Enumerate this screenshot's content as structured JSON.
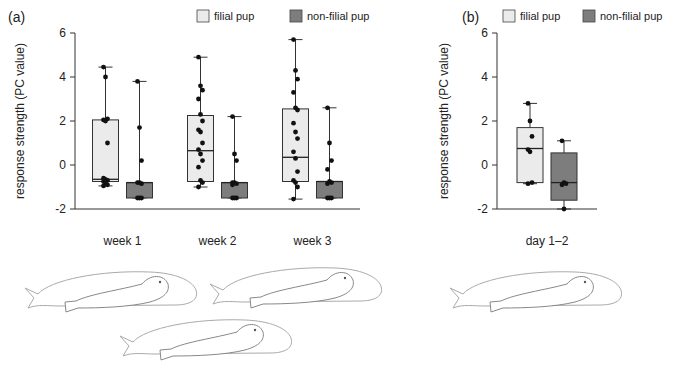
{
  "chart_data": [
    {
      "type": "box",
      "title": "(a)",
      "y_label": "response strength (PC value)",
      "categories": [
        "week 1",
        "week 2",
        "week 3"
      ],
      "ylim": [
        -2,
        6
      ],
      "yticks": [
        -2,
        0,
        2,
        4,
        6
      ],
      "grid": false,
      "legend": "top",
      "series": [
        {
          "name": "filial pup",
          "color": "#ebebeb",
          "values": [
            {
              "min": -0.95,
              "q1": -0.75,
              "median": -0.65,
              "q3": 2.05,
              "max": 4.45,
              "points": [
                4.45,
                4.0,
                2.1,
                2.05,
                2.0,
                1.0,
                -0.6,
                -0.65,
                -0.7,
                -0.75,
                -0.8,
                -0.9,
                -0.95
              ]
            },
            {
              "min": -1.0,
              "q1": -0.75,
              "median": 0.65,
              "q3": 2.25,
              "max": 4.9,
              "points": [
                4.9,
                3.6,
                3.4,
                3.0,
                2.3,
                2.0,
                1.6,
                1.5,
                1.0,
                0.7,
                0.5,
                0.2,
                -0.1,
                -0.7,
                -0.8,
                -1.0
              ]
            },
            {
              "min": -1.55,
              "q1": -0.75,
              "median": 0.35,
              "q3": 2.55,
              "max": 5.7,
              "points": [
                5.7,
                4.3,
                3.9,
                3.3,
                2.6,
                2.5,
                1.9,
                1.5,
                1.2,
                0.6,
                0.3,
                -0.3,
                -0.7,
                -0.8,
                -1.0,
                -1.55
              ]
            }
          ]
        },
        {
          "name": "non-filial pup",
          "color": "#7d7d7d",
          "values": [
            {
              "min": -1.5,
              "q1": -1.5,
              "median": -0.8,
              "q3": -0.8,
              "max": 3.8,
              "points": [
                3.8,
                1.7,
                0.2,
                -0.8,
                -0.8,
                -0.85,
                -1.5,
                -1.5,
                -1.5
              ]
            },
            {
              "min": -1.5,
              "q1": -1.5,
              "median": -0.8,
              "q3": -0.8,
              "max": 2.2,
              "points": [
                2.2,
                0.5,
                0.2,
                -0.8,
                -0.8,
                -0.85,
                -0.9,
                -1.5,
                -1.5,
                -1.5
              ]
            },
            {
              "min": -1.5,
              "q1": -1.5,
              "median": -0.75,
              "q3": -0.75,
              "max": 2.6,
              "points": [
                2.6,
                1.0,
                0.2,
                -0.2,
                -0.75,
                -0.8,
                -0.85,
                -1.5,
                -1.5,
                -1.5
              ]
            }
          ]
        }
      ]
    },
    {
      "type": "box",
      "title": "(b)",
      "y_label": "response strength (PC value)",
      "categories": [
        "day 1–2"
      ],
      "ylim": [
        -2,
        6
      ],
      "yticks": [
        -2,
        0,
        2,
        4,
        6
      ],
      "grid": false,
      "legend": "top",
      "series": [
        {
          "name": "filial pup",
          "color": "#ebebeb",
          "values": [
            {
              "min": -0.85,
              "q1": -0.8,
              "median": 0.75,
              "q3": 1.7,
              "max": 2.8,
              "points": [
                2.8,
                2.0,
                1.3,
                0.7,
                0.6,
                -0.8,
                -0.85
              ]
            }
          ]
        },
        {
          "name": "non-filial pup",
          "color": "#7d7d7d",
          "values": [
            {
              "min": -2.0,
              "q1": -1.6,
              "median": -0.8,
              "q3": 0.55,
              "max": 1.1,
              "points": [
                1.1,
                -0.8,
                -0.85,
                -0.9,
                -2.0
              ]
            }
          ]
        }
      ]
    }
  ]
}
